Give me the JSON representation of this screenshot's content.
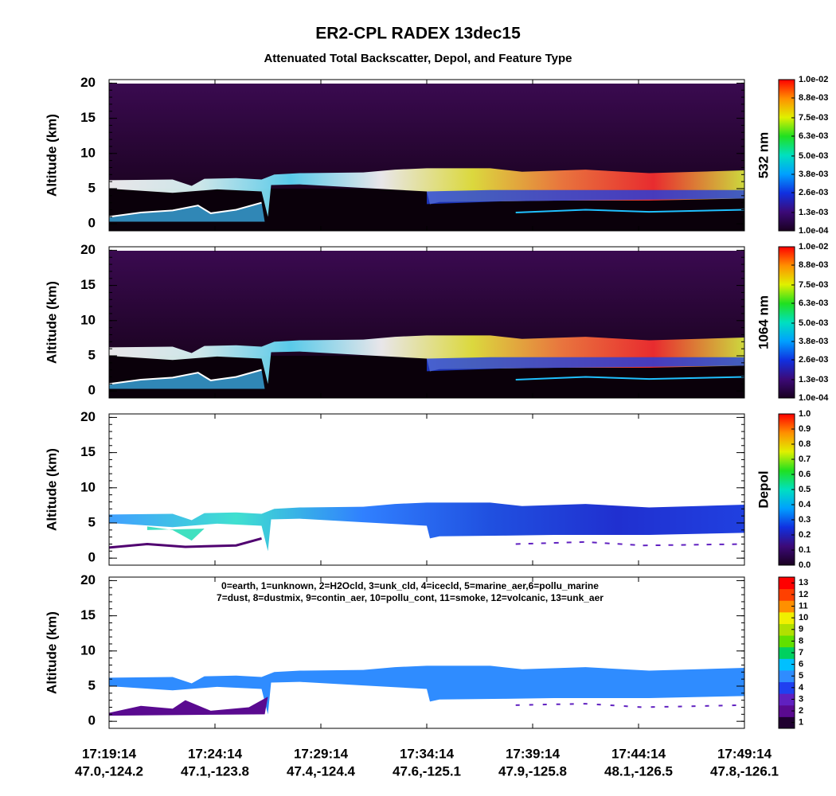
{
  "title": "ER2-CPL RADEX 13dec15",
  "subtitle": "Attenuated Total Backscatter, Depol, and Feature Type",
  "chart_data": [
    {
      "type": "curtain",
      "ylabel": "Altitude (km)",
      "ylim": [
        -1,
        20.5
      ],
      "yticks": [
        0,
        5,
        10,
        15,
        20
      ],
      "style": "backscatter",
      "colorbar": {
        "label": "532 nm",
        "clim": [
          0.0001,
          0.01
        ],
        "colors": [
          "#1a0020",
          "#3c0a78",
          "#1030e0",
          "#00a0ff",
          "#00e0c0",
          "#20e020",
          "#e0f000",
          "#ff9000",
          "#ff0000"
        ],
        "ticks": [
          {
            "value": 0.01,
            "label": "1.0e-02"
          },
          {
            "value": 0.0088,
            "label": "8.8e-03"
          },
          {
            "value": 0.0075,
            "label": "7.5e-03"
          },
          {
            "value": 0.0063,
            "label": "6.3e-03"
          },
          {
            "value": 0.005,
            "label": "5.0e-03"
          },
          {
            "value": 0.0038,
            "label": "3.8e-03"
          },
          {
            "value": 0.0026,
            "label": "2.6e-03"
          },
          {
            "value": 0.0013,
            "label": "1.3e-03"
          },
          {
            "value": 0.0001,
            "label": "1.0e-04"
          }
        ]
      }
    },
    {
      "type": "curtain",
      "ylabel": "Altitude (km)",
      "ylim": [
        -1,
        20.5
      ],
      "yticks": [
        0,
        5,
        10,
        15,
        20
      ],
      "style": "backscatter",
      "colorbar": {
        "label": "1064 nm",
        "clim": [
          0.0001,
          0.01
        ],
        "colors": [
          "#1a0020",
          "#3c0a78",
          "#1030e0",
          "#00a0ff",
          "#00e0c0",
          "#20e020",
          "#e0f000",
          "#ff9000",
          "#ff0000"
        ],
        "ticks": [
          {
            "value": 0.01,
            "label": "1.0e-02"
          },
          {
            "value": 0.0088,
            "label": "8.8e-03"
          },
          {
            "value": 0.0075,
            "label": "7.5e-03"
          },
          {
            "value": 0.0063,
            "label": "6.3e-03"
          },
          {
            "value": 0.005,
            "label": "5.0e-03"
          },
          {
            "value": 0.0038,
            "label": "3.8e-03"
          },
          {
            "value": 0.0026,
            "label": "2.6e-03"
          },
          {
            "value": 0.0013,
            "label": "1.3e-03"
          },
          {
            "value": 0.0001,
            "label": "1.0e-04"
          }
        ]
      }
    },
    {
      "type": "curtain",
      "ylabel": "Altitude (km)",
      "ylim": [
        -1,
        20.5
      ],
      "yticks": [
        0,
        5,
        10,
        15,
        20
      ],
      "style": "depol",
      "colorbar": {
        "label": "Depol",
        "clim": [
          0,
          1
        ],
        "colors": [
          "#1a0020",
          "#3c0a78",
          "#1030e0",
          "#00a0ff",
          "#00e0c0",
          "#20e020",
          "#e0f000",
          "#ff9000",
          "#ff0000"
        ],
        "ticks": [
          {
            "value": 0,
            "label": "0.0"
          },
          0.1,
          0.2,
          0.3,
          0.4,
          0.5,
          0.6,
          0.7,
          0.8,
          0.9,
          {
            "value": 1,
            "label": "1.0"
          }
        ]
      }
    },
    {
      "type": "curtain",
      "ylabel": "Altitude (km)",
      "ylim": [
        -1,
        20.5
      ],
      "yticks": [
        0,
        5,
        10,
        15,
        20
      ],
      "style": "feature",
      "annotations": [
        "0=earth, 1=unknown, 2=H2Ocld, 3=unk_cld, 4=icecld, 5=marine_aer,6=pollu_marine",
        "7=dust, 8=dustmix, 9=contin_aer, 10=pollu_cont, 11=smoke, 12=volcanic, 13=unk_aer"
      ],
      "colorbar": {
        "clim": [
          0.5,
          13.5
        ],
        "colors": [
          "#200030",
          "#5a0a90",
          "#6020c0",
          "#2040f0",
          "#2f8cff",
          "#00c0ff",
          "#00d060",
          "#60e000",
          "#b0e000",
          "#f0f000",
          "#ff9000",
          "#ff4000",
          "#ff0000"
        ],
        "ticks": [
          1,
          2,
          3,
          4,
          5,
          6,
          7,
          8,
          9,
          10,
          11,
          12,
          13
        ]
      },
      "categories": [
        "17:19:14",
        "17:24:14",
        "17:29:14",
        "17:34:14",
        "17:39:14",
        "17:44:14",
        "17:49:14"
      ],
      "locations": [
        "47.0,-124.2",
        "47.1,-123.8",
        "47.4,-124.4",
        "47.6,-125.1",
        "47.9,-125.8",
        "48.1,-126.5",
        "47.8,-126.1"
      ]
    }
  ]
}
